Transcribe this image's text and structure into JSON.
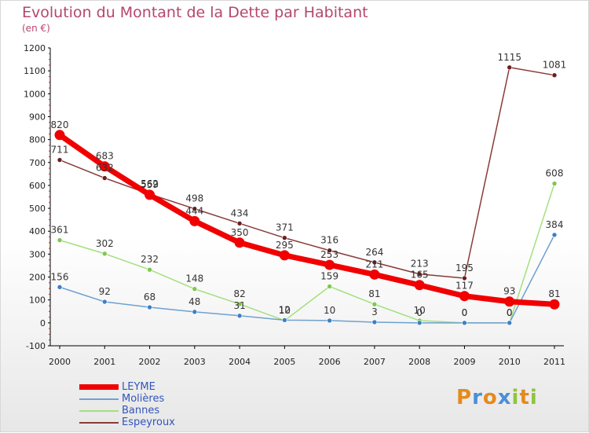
{
  "title": "Evolution du Montant de la Dette par Habitant",
  "subtitle": "(en €)",
  "logo": {
    "letters": [
      "P",
      "r",
      "o",
      "x",
      "i",
      "t",
      "i"
    ],
    "colors": [
      "#e58a1e",
      "#4a8fd8",
      "#e58a1e",
      "#4a8fd8",
      "#8fc43c",
      "#e58a1e",
      "#8fc43c"
    ]
  },
  "chart_data": {
    "type": "line",
    "x": [
      "2000",
      "2001",
      "2002",
      "2003",
      "2004",
      "2005",
      "2006",
      "2007",
      "2008",
      "2009",
      "2010",
      "2011"
    ],
    "y_ticks": [
      "-100",
      "0",
      "100",
      "200",
      "300",
      "400",
      "500",
      "600",
      "700",
      "800",
      "900",
      "1000",
      "1100",
      "1200"
    ],
    "ylim": [
      -100,
      1200
    ],
    "grid": false,
    "legend_position": "bottom-left",
    "series": [
      {
        "name": "LEYME",
        "color": "#f00000",
        "width": 7,
        "values": [
          820,
          683,
          559,
          444,
          350,
          295,
          253,
          211,
          165,
          117,
          93,
          81
        ],
        "labels": [
          "820",
          "683",
          "559",
          "444",
          "350",
          "295",
          "253",
          "211",
          "165",
          "117",
          "93",
          "81"
        ]
      },
      {
        "name": "Molières",
        "color": "#6fa0d0",
        "width": 1.5,
        "marker": "#3d7fc4",
        "values": [
          156,
          92,
          68,
          48,
          31,
          12,
          10,
          3,
          0,
          0,
          0,
          384
        ],
        "labels": [
          "156",
          "92",
          "68",
          "48",
          "31",
          "12",
          "10",
          "3",
          "0",
          "0",
          "0",
          "384"
        ]
      },
      {
        "name": "Bannes",
        "color": "#a4e07c",
        "width": 1.5,
        "marker": "#7ec84c",
        "values": [
          361,
          302,
          232,
          148,
          82,
          10,
          159,
          81,
          10,
          0,
          0,
          608
        ],
        "labels": [
          "361",
          "302",
          "232",
          "148",
          "82",
          "10",
          "159",
          "81",
          "10",
          "0",
          "0",
          "608"
        ]
      },
      {
        "name": "Espeyroux",
        "color": "#8a3a3a",
        "width": 1.5,
        "marker": "#6b1e1e",
        "values": [
          711,
          632,
          562,
          498,
          434,
          371,
          316,
          264,
          213,
          195,
          1115,
          1081
        ],
        "labels": [
          "711",
          "632",
          "562",
          "498",
          "434",
          "371",
          "316",
          "264",
          "213",
          "195",
          "1115",
          "1081"
        ]
      }
    ]
  }
}
